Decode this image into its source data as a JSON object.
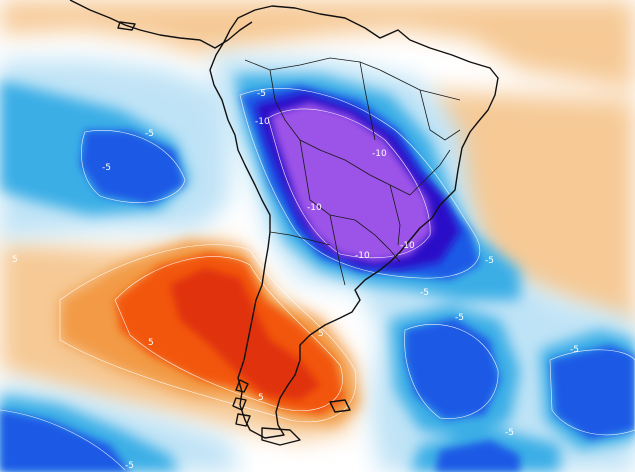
{
  "map": {
    "colors": {
      "background": "#ffffff",
      "warm_weak": "#f6c995",
      "warm_mid": "#f29a45",
      "warm_strong": "#f2560e",
      "warm_core": "#e0300a",
      "cold_weak": "#bfe3f6",
      "cold_mid": "#3aaee6",
      "cold_strong": "#1f5ae6",
      "cold_deep": "#2a10c8",
      "cold_core": "#9c52e8",
      "coast": "#111111",
      "contour": "#ffffff"
    },
    "contour_labels": [
      {
        "id": "pos-5-west-pacific",
        "text": "5"
      },
      {
        "id": "pos-5-chile-coast",
        "text": "5"
      },
      {
        "id": "pos-5-patagonia",
        "text": "5"
      },
      {
        "id": "pos-5-south-andes",
        "text": "5"
      },
      {
        "id": "neg-5-north-brazil",
        "text": "-5"
      },
      {
        "id": "neg-5-east-pacific",
        "text": "-5"
      },
      {
        "id": "neg-5-pacific-mid",
        "text": "-5"
      },
      {
        "id": "neg-5-atlantic-east",
        "text": "-5"
      },
      {
        "id": "neg-5-atlantic-se",
        "text": "-5"
      },
      {
        "id": "neg-5-atlantic-south",
        "text": "-5"
      },
      {
        "id": "neg-5-uruguay",
        "text": "-5"
      },
      {
        "id": "neg-5-southwest",
        "text": "-5"
      },
      {
        "id": "neg-5-bottom-right",
        "text": "-5"
      },
      {
        "id": "neg-10-peru",
        "text": "-10"
      },
      {
        "id": "neg-10-bolivia",
        "text": "-10"
      },
      {
        "id": "neg-10-brazil-center",
        "text": "-10"
      },
      {
        "id": "neg-10-paraguay",
        "text": "-10"
      },
      {
        "id": "neg-10-brazil-south",
        "text": "-10"
      }
    ]
  }
}
